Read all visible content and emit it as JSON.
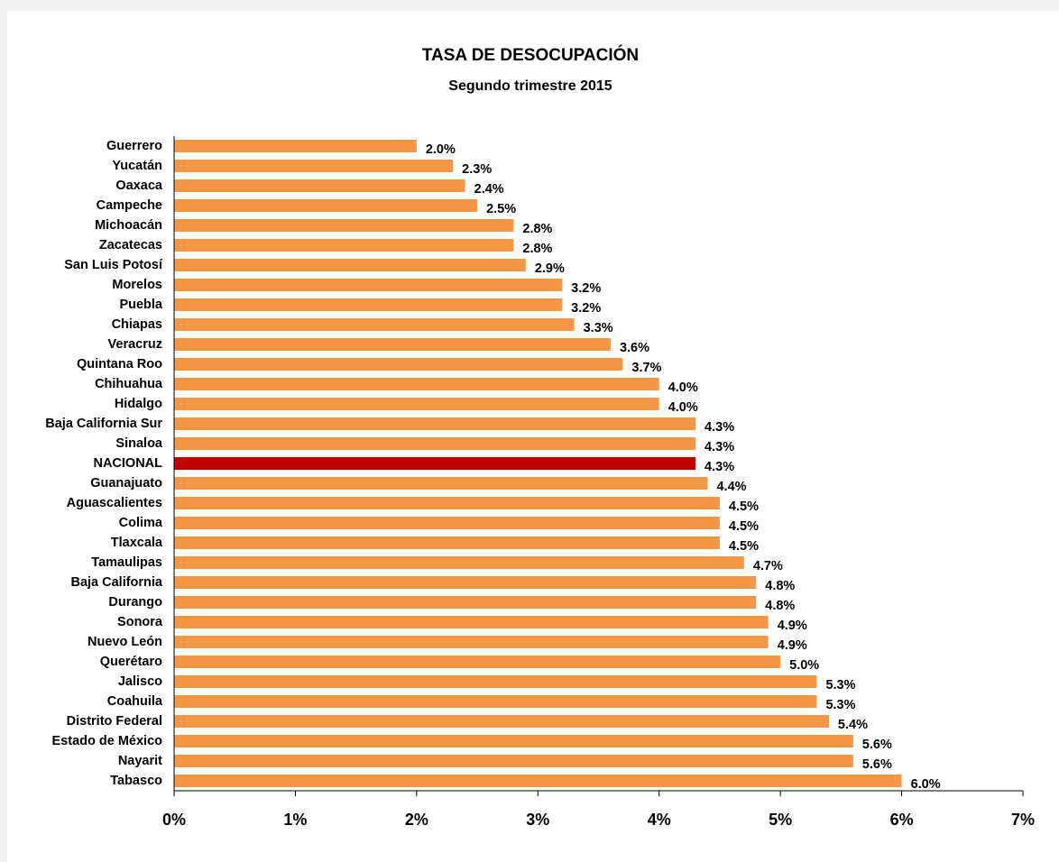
{
  "chart_data": {
    "type": "barh",
    "title": "TASA  DE  DESOCUPACIÓN",
    "subtitle": "Segundo trimestre 2015",
    "categories": [
      "Guerrero",
      "Yucatán",
      "Oaxaca",
      "Campeche",
      "Michoacán",
      "Zacatecas",
      "San Luis Potosí",
      "Morelos",
      "Puebla",
      "Chiapas",
      "Veracruz",
      "Quintana Roo",
      "Chihuahua",
      "Hidalgo",
      "Baja California Sur",
      "Sinaloa",
      "NACIONAL",
      "Guanajuato",
      "Aguascalientes",
      "Colima",
      "Tlaxcala",
      "Tamaulipas",
      "Baja California",
      "Durango",
      "Sonora",
      "Nuevo León",
      "Querétaro",
      "Jalisco",
      "Coahuila",
      "Distrito Federal",
      "Estado de México",
      "Nayarit",
      "Tabasco"
    ],
    "values": [
      2.0,
      2.3,
      2.4,
      2.5,
      2.8,
      2.8,
      2.9,
      3.2,
      3.2,
      3.3,
      3.6,
      3.7,
      4.0,
      4.0,
      4.3,
      4.3,
      4.3,
      4.4,
      4.5,
      4.5,
      4.5,
      4.7,
      4.8,
      4.8,
      4.9,
      4.9,
      5.0,
      5.3,
      5.3,
      5.4,
      5.6,
      5.6,
      6.0
    ],
    "value_labels": [
      "2.0%",
      "2.3%",
      "2.4%",
      "2.5%",
      "2.8%",
      "2.8%",
      "2.9%",
      "3.2%",
      "3.2%",
      "3.3%",
      "3.6%",
      "3.7%",
      "4.0%",
      "4.0%",
      "4.3%",
      "4.3%",
      "4.3%",
      "4.4%",
      "4.5%",
      "4.5%",
      "4.5%",
      "4.7%",
      "4.8%",
      "4.8%",
      "4.9%",
      "4.9%",
      "5.0%",
      "5.3%",
      "5.3%",
      "5.4%",
      "5.6%",
      "5.6%",
      "6.0%"
    ],
    "color": "#f79646",
    "highlight": {
      "index": 16,
      "color": "#c00000"
    },
    "xlim": [
      0,
      7
    ],
    "xticks": [
      {
        "value": 0,
        "label": "0%"
      },
      {
        "value": 1,
        "label": "1%"
      },
      {
        "value": 2,
        "label": "2%"
      },
      {
        "value": 3,
        "label": "3%"
      },
      {
        "value": 4,
        "label": "4%"
      },
      {
        "value": 5,
        "label": "5%"
      },
      {
        "value": 6,
        "label": "6%"
      },
      {
        "value": 7,
        "label": "7%"
      }
    ]
  }
}
